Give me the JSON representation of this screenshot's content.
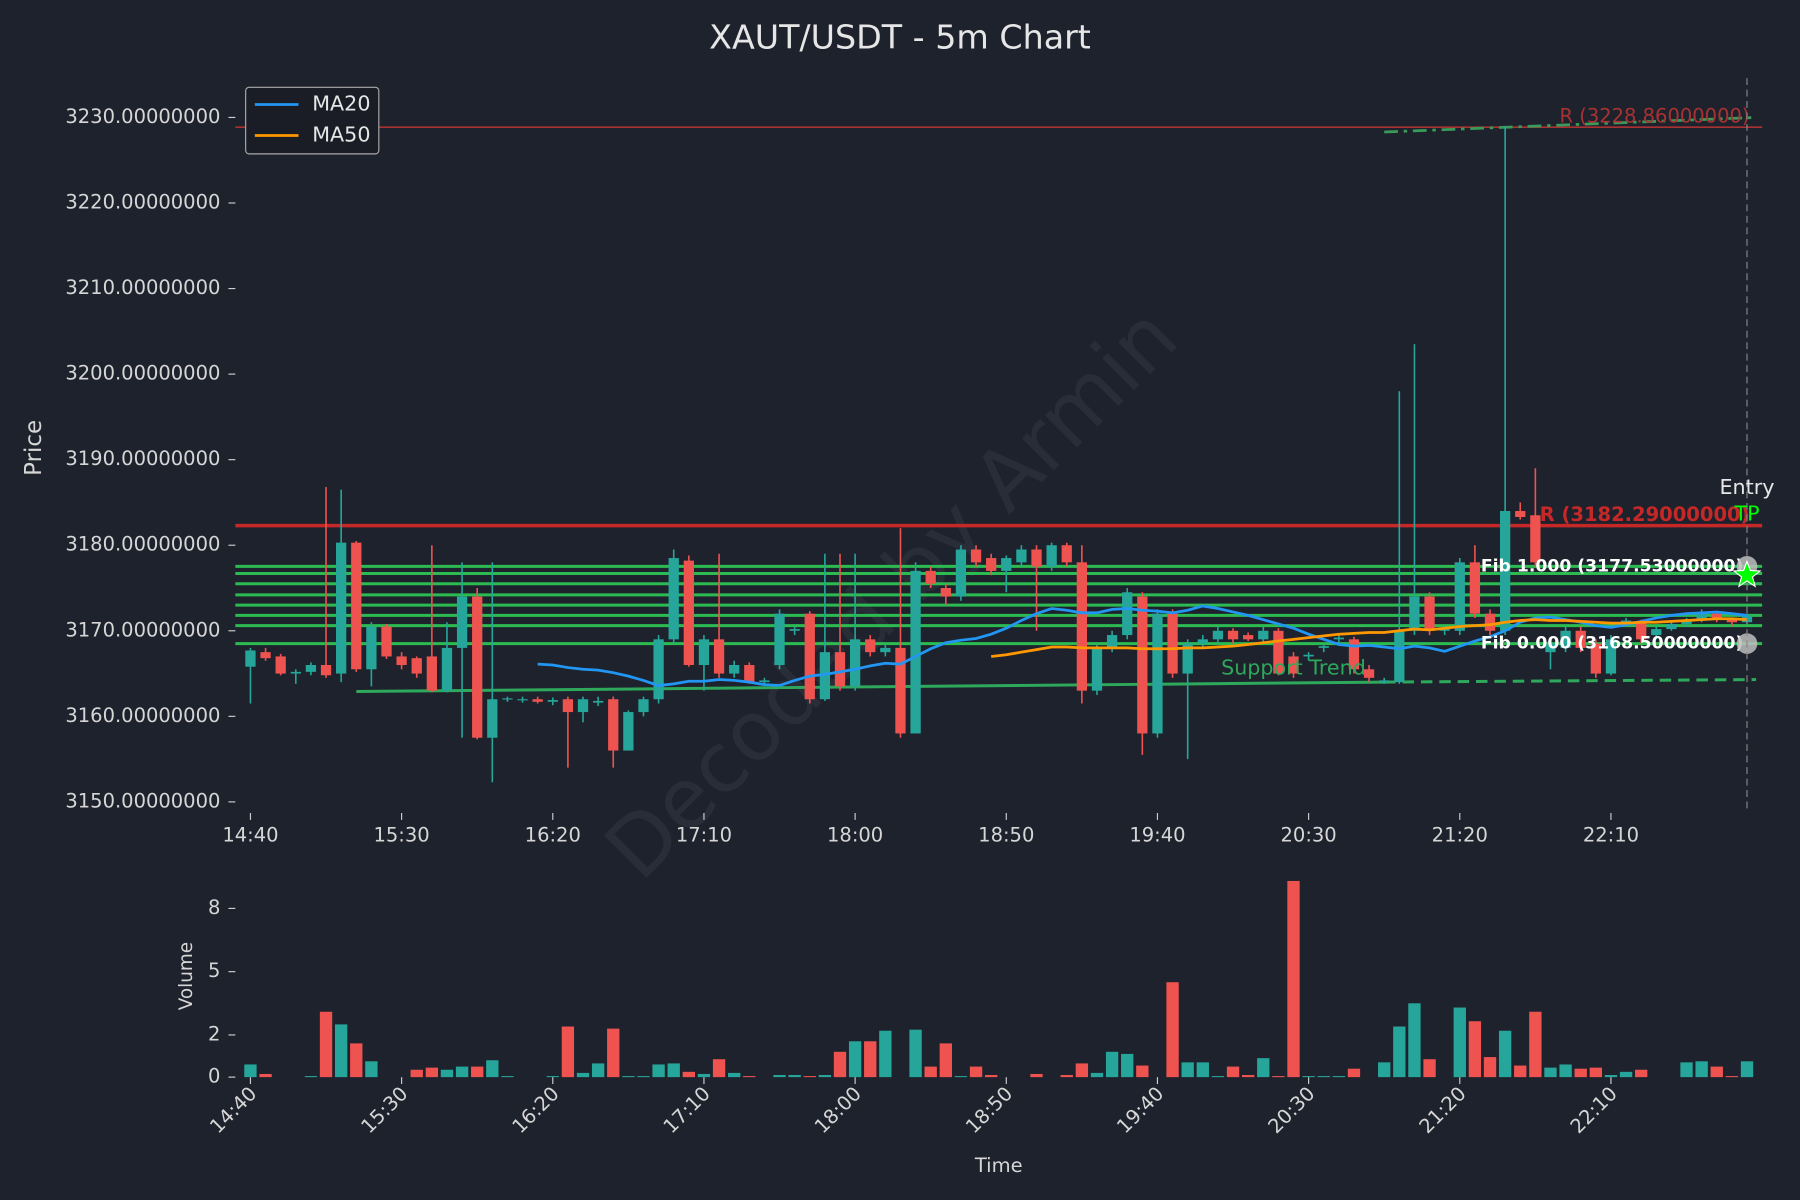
{
  "chart_data": [
    {
      "type": "candlestick",
      "title": "XAUT/USDT - 5m Chart",
      "ylabel": "Price",
      "watermark": "Decoded by Armin",
      "categories": [
        "14:40",
        null,
        null,
        null,
        null,
        null,
        null,
        null,
        null,
        null,
        "15:30",
        null,
        null,
        null,
        null,
        null,
        null,
        null,
        null,
        null,
        "16:20",
        null,
        null,
        null,
        null,
        null,
        null,
        null,
        null,
        null,
        "17:10",
        null,
        null,
        null,
        null,
        null,
        null,
        null,
        null,
        null,
        "18:00",
        null,
        null,
        null,
        null,
        null,
        null,
        null,
        null,
        null,
        "18:50",
        null,
        null,
        null,
        null,
        null,
        null,
        null,
        null,
        null,
        "19:40",
        null,
        null,
        null,
        null,
        null,
        null,
        null,
        null,
        null,
        "20:30",
        null,
        null,
        null,
        null,
        null,
        null,
        null,
        null,
        null,
        "21:20",
        null,
        null,
        null,
        null,
        null,
        null,
        null,
        null,
        null,
        "22:10",
        null,
        null,
        null,
        null,
        null,
        null,
        null,
        null,
        null
      ],
      "open": [
        3165.8,
        3167.5,
        3167.0,
        3165.0,
        3165.2,
        3166.0,
        3165.0,
        3180.3,
        3165.5,
        3170.5,
        3167.0,
        3166.8,
        3167.0,
        3163.0,
        3168.0,
        3174.0,
        3157.5,
        3162.0,
        3161.9,
        3162.0,
        3161.7,
        3162.0,
        3160.5,
        3161.6,
        3162.0,
        3156.0,
        3160.5,
        3162.0,
        3169.0,
        3178.2,
        3166.0,
        3169.0,
        3165.0,
        3166.0,
        3164.0,
        3166.0,
        3170.0,
        3172.0,
        3162.0,
        3167.5,
        3163.5,
        3169.0,
        3167.5,
        3168.0,
        3158.0,
        3177.0,
        3175.0,
        3174.0,
        3179.5,
        3178.5,
        3177.0,
        3178.0,
        3179.5,
        3177.5,
        3180.0,
        3178.0,
        3163.0,
        3168.0,
        3169.5,
        3174.0,
        3158.0,
        3172.0,
        3165.0,
        3168.5,
        3169.0,
        3170.0,
        3169.5,
        3169.0,
        3170.0,
        3167.0,
        3167.0,
        3168.0,
        3169.0,
        3169.0,
        3165.5,
        3164.0,
        3164.0,
        3170.0,
        3174.0,
        3170.0,
        3170.0,
        3178.0,
        3172.0,
        3170.0,
        3184.0,
        3183.5,
        3167.5,
        3168.0,
        3170.0,
        3168.5,
        3165.0,
        3171.0,
        3171.0,
        3169.5,
        3170.2,
        3170.8,
        3171.2,
        3172.0,
        3171.3,
        3171.0
      ],
      "high": [
        3168.0,
        3168.0,
        3167.3,
        3165.5,
        3166.3,
        3186.8,
        3186.5,
        3180.5,
        3171.0,
        3170.8,
        3167.5,
        3167.0,
        3180.0,
        3171.0,
        3178.0,
        3175.0,
        3178.0,
        3162.3,
        3162.3,
        3162.3,
        3162.2,
        3162.3,
        3162.3,
        3162.3,
        3162.3,
        3160.7,
        3162.3,
        3169.5,
        3179.5,
        3178.8,
        3169.5,
        3179.0,
        3166.5,
        3166.3,
        3164.5,
        3172.5,
        3170.5,
        3172.3,
        3179.0,
        3179.0,
        3179.0,
        3169.5,
        3168.5,
        3182.0,
        3178.0,
        3177.5,
        3175.5,
        3180.0,
        3180.0,
        3179.0,
        3178.8,
        3180.0,
        3180.0,
        3180.3,
        3180.3,
        3180.0,
        3168.5,
        3170.0,
        3175.0,
        3174.5,
        3172.5,
        3172.5,
        3169.0,
        3169.5,
        3170.5,
        3170.3,
        3169.8,
        3170.5,
        3170.3,
        3167.5,
        3167.5,
        3168.5,
        3169.5,
        3169.3,
        3166.0,
        3164.5,
        3198.0,
        3203.5,
        3174.5,
        3170.5,
        3178.5,
        3180.0,
        3172.5,
        3229.0,
        3185.0,
        3189.0,
        3169.0,
        3170.5,
        3170.5,
        3169.0,
        3169.5,
        3171.5,
        3171.3,
        3170.5,
        3171.0,
        3171.5,
        3172.5,
        3172.3,
        3171.5,
        3172.0
      ],
      "low": [
        3161.5,
        3166.5,
        3164.8,
        3163.8,
        3164.8,
        3164.5,
        3164.0,
        3165.2,
        3163.5,
        3166.7,
        3165.5,
        3164.5,
        3162.8,
        3162.8,
        3157.5,
        3157.3,
        3152.3,
        3161.7,
        3161.6,
        3161.5,
        3161.3,
        3154.0,
        3159.3,
        3161.2,
        3154.0,
        3156.0,
        3160.0,
        3161.5,
        3168.5,
        3165.8,
        3163.0,
        3164.5,
        3164.5,
        3163.8,
        3163.5,
        3165.5,
        3169.5,
        3161.5,
        3161.8,
        3163.0,
        3163.0,
        3167.0,
        3167.0,
        3157.5,
        3158.0,
        3175.0,
        3173.0,
        3173.5,
        3177.5,
        3176.5,
        3174.5,
        3177.5,
        3170.0,
        3177.0,
        3177.5,
        3161.5,
        3162.5,
        3167.5,
        3169.0,
        3155.5,
        3157.5,
        3164.5,
        3155.0,
        3168.0,
        3168.5,
        3168.5,
        3168.8,
        3168.5,
        3164.8,
        3164.5,
        3166.5,
        3167.5,
        3168.5,
        3165.0,
        3164.0,
        3163.8,
        3163.8,
        3169.5,
        3169.5,
        3169.5,
        3169.5,
        3171.5,
        3169.5,
        3169.5,
        3183.0,
        3177.5,
        3165.5,
        3167.5,
        3167.5,
        3164.5,
        3164.8,
        3170.5,
        3168.5,
        3169.0,
        3170.0,
        3170.5,
        3171.0,
        3171.0,
        3170.5,
        3170.8
      ],
      "close": [
        3167.7,
        3166.8,
        3165.0,
        3165.2,
        3166.0,
        3164.8,
        3180.3,
        3165.5,
        3170.5,
        3167.0,
        3166.0,
        3165.0,
        3163.0,
        3168.0,
        3174.0,
        3157.5,
        3162.0,
        3162.1,
        3162.0,
        3161.7,
        3161.9,
        3160.5,
        3162.0,
        3161.8,
        3156.0,
        3160.5,
        3162.0,
        3169.0,
        3178.5,
        3166.0,
        3169.0,
        3165.0,
        3166.0,
        3164.0,
        3164.2,
        3172.0,
        3170.2,
        3162.0,
        3167.5,
        3163.5,
        3169.0,
        3167.5,
        3168.0,
        3158.0,
        3177.0,
        3175.5,
        3174.0,
        3179.5,
        3178.0,
        3177.0,
        3178.5,
        3179.5,
        3177.5,
        3180.0,
        3178.0,
        3163.0,
        3168.0,
        3169.5,
        3174.5,
        3158.0,
        3172.0,
        3165.0,
        3168.5,
        3169.0,
        3170.0,
        3169.0,
        3169.0,
        3170.0,
        3165.0,
        3165.0,
        3167.2,
        3168.2,
        3169.2,
        3165.5,
        3164.5,
        3164.2,
        3170.0,
        3174.0,
        3170.0,
        3170.2,
        3178.0,
        3172.0,
        3170.0,
        3184.0,
        3183.3,
        3178.0,
        3168.5,
        3170.0,
        3168.0,
        3165.0,
        3169.0,
        3171.2,
        3169.0,
        3170.2,
        3170.8,
        3171.2,
        3172.0,
        3171.3,
        3171.0,
        3171.8
      ],
      "up_color": "#26a69a",
      "down_color": "#ef5350",
      "ylim": [
        3148.7,
        3234.6
      ],
      "yticks": [
        {
          "value": 3150,
          "label": "3150.00000000"
        },
        {
          "value": 3160,
          "label": "3160.00000000"
        },
        {
          "value": 3170,
          "label": "3170.00000000"
        },
        {
          "value": 3180,
          "label": "3180.00000000"
        },
        {
          "value": 3190,
          "label": "3190.00000000"
        },
        {
          "value": 3200,
          "label": "3200.00000000"
        },
        {
          "value": 3210,
          "label": "3210.00000000"
        },
        {
          "value": 3220,
          "label": "3220.00000000"
        },
        {
          "value": 3230,
          "label": "3230.00000000"
        }
      ],
      "legend": "upper left",
      "series": [
        {
          "name": "MA20",
          "color": "#2196f3",
          "values": [
            null,
            null,
            null,
            null,
            null,
            null,
            null,
            null,
            null,
            null,
            null,
            null,
            null,
            null,
            null,
            null,
            null,
            null,
            null,
            3166.1,
            3166.0,
            3165.7,
            3165.5,
            3165.4,
            3165.1,
            3164.7,
            3164.2,
            3163.6,
            3163.8,
            3164.1,
            3164.1,
            3164.3,
            3164.2,
            3164.0,
            3163.7,
            3163.6,
            3164.2,
            3164.7,
            3164.9,
            3165.2,
            3165.5,
            3165.9,
            3166.2,
            3166.1,
            3167.0,
            3167.9,
            3168.6,
            3168.9,
            3169.1,
            3169.6,
            3170.3,
            3171.2,
            3172.0,
            3172.6,
            3172.4,
            3172.1,
            3172.1,
            3172.5,
            3172.6,
            3172.4,
            3172.3,
            3172.1,
            3172.4,
            3172.9,
            3172.6,
            3172.2,
            3171.8,
            3171.3,
            3170.8,
            3170.3,
            3169.6,
            3169.0,
            3168.4,
            3168.2,
            3168.3,
            3168.1,
            3167.9,
            3168.2,
            3168.0,
            3167.6,
            3168.2,
            3168.8,
            3169.3,
            3170.0,
            3171.0,
            3171.5,
            3171.6,
            3171.3,
            3171.0,
            3170.6,
            3170.4,
            3170.7,
            3171.1,
            3171.5,
            3171.8,
            3172.0,
            3172.1,
            3172.2,
            3172.0,
            3171.8
          ]
        },
        {
          "name": "MA50",
          "color": "#ff9800",
          "values": [
            null,
            null,
            null,
            null,
            null,
            null,
            null,
            null,
            null,
            null,
            null,
            null,
            null,
            null,
            null,
            null,
            null,
            null,
            null,
            null,
            null,
            null,
            null,
            null,
            null,
            null,
            null,
            null,
            null,
            null,
            null,
            null,
            null,
            null,
            null,
            null,
            null,
            null,
            null,
            null,
            null,
            null,
            null,
            null,
            null,
            null,
            null,
            null,
            null,
            3167.0,
            3167.2,
            3167.5,
            3167.8,
            3168.1,
            3168.1,
            3168.0,
            3168.0,
            3168.0,
            3168.0,
            3167.9,
            3167.9,
            3167.9,
            3168.0,
            3168.0,
            3168.1,
            3168.2,
            3168.4,
            3168.6,
            3168.8,
            3169.0,
            3169.2,
            3169.4,
            3169.6,
            3169.7,
            3169.8,
            3169.8,
            3170.0,
            3170.2,
            3170.1,
            3170.3,
            3170.5,
            3170.6,
            3170.7,
            3171.0,
            3171.2,
            3171.3,
            3171.2,
            3171.2,
            3171.1,
            3171.0,
            3170.9,
            3170.9,
            3171.0,
            3171.0,
            3171.1,
            3171.2,
            3171.3,
            3171.4,
            3171.4,
            3171.3
          ]
        }
      ],
      "levels": [
        {
          "label": "R (3228.86000000)",
          "value": 3228.86,
          "color": "#a83232"
        },
        {
          "label": "R (3182.29000000)",
          "value": 3182.29,
          "color": "#c62828"
        }
      ],
      "fib_color": "#2ecc55",
      "fib_levels": [
        3177.53,
        3176.7,
        3175.5,
        3174.2,
        3173.0,
        3171.8,
        3170.6,
        3168.5
      ],
      "fib_labels": [
        {
          "label": "Fib 1.000 (3177.53000000)",
          "value": 3177.53
        },
        {
          "label": "Fib 0.000 (3168.50000000)",
          "value": 3168.5
        }
      ],
      "support_trend": {
        "label": "Support Trend",
        "color": "#2ea85a",
        "x": [
          7,
          75,
          99.6
        ],
        "y": [
          3162.9,
          3164.0,
          3164.3
        ]
      },
      "resistance_trend": {
        "color": "#3a9a5a",
        "x": [
          75,
          99.6
        ],
        "y": [
          3228.3,
          3230.0
        ]
      },
      "entry": {
        "label": "Entry",
        "tp_label": "TP",
        "x": 99,
        "price": 3176.5,
        "color": "#00ff00"
      }
    },
    {
      "type": "bar",
      "xlabel": "Time",
      "ylabel": "Volume",
      "categories": [
        "14:40",
        null,
        null,
        null,
        null,
        null,
        null,
        null,
        null,
        null,
        "15:30",
        null,
        null,
        null,
        null,
        null,
        null,
        null,
        null,
        null,
        "16:20",
        null,
        null,
        null,
        null,
        null,
        null,
        null,
        null,
        null,
        "17:10",
        null,
        null,
        null,
        null,
        null,
        null,
        null,
        null,
        null,
        "18:00",
        null,
        null,
        null,
        null,
        null,
        null,
        null,
        null,
        null,
        "18:50",
        null,
        null,
        null,
        null,
        null,
        null,
        null,
        null,
        null,
        "19:40",
        null,
        null,
        null,
        null,
        null,
        null,
        null,
        null,
        null,
        "20:30",
        null,
        null,
        null,
        null,
        null,
        null,
        null,
        null,
        null,
        "21:20",
        null,
        null,
        null,
        null,
        null,
        null,
        null,
        null,
        null,
        "22:10",
        null,
        null,
        null,
        null,
        null,
        null,
        null,
        null,
        null
      ],
      "values": [
        0.6,
        0.15,
        0,
        0,
        0.05,
        3.1,
        2.5,
        1.6,
        0.75,
        0,
        0,
        0.35,
        0.45,
        0.35,
        0.5,
        0.5,
        0.8,
        0.05,
        0,
        0,
        0.05,
        2.4,
        0.2,
        0.65,
        2.3,
        0.05,
        0.05,
        0.6,
        0.65,
        0.25,
        0.15,
        0.85,
        0.2,
        0.05,
        0,
        0.1,
        0.1,
        0.05,
        0.1,
        1.2,
        1.7,
        1.7,
        2.2,
        0,
        2.25,
        0.5,
        1.6,
        0.05,
        0.5,
        0.1,
        0,
        0,
        0.15,
        0,
        0.1,
        0.65,
        0.2,
        1.2,
        1.1,
        0.55,
        0,
        4.5,
        0.7,
        0.7,
        0.05,
        0.5,
        0.1,
        0.9,
        0.05,
        9.3,
        0.05,
        0.05,
        0.05,
        0.4,
        0,
        0.7,
        2.4,
        3.5,
        0.85,
        0,
        3.3,
        2.65,
        0.95,
        2.2,
        0.55,
        3.1,
        0.45,
        0.6,
        0.4,
        0.45,
        0.1,
        0.25,
        0.35,
        0,
        0,
        0.7,
        0.75,
        0.5,
        0.05,
        0.75
      ],
      "ylim": [
        0,
        9.8
      ],
      "yticks": [
        0,
        2,
        5,
        8
      ]
    }
  ]
}
